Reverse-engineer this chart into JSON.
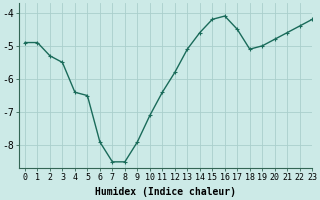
{
  "x": [
    0,
    1,
    2,
    3,
    4,
    5,
    6,
    7,
    8,
    9,
    10,
    11,
    12,
    13,
    14,
    15,
    16,
    17,
    18,
    19,
    20,
    21,
    22,
    23
  ],
  "y": [
    -4.9,
    -4.9,
    -5.3,
    -5.5,
    -6.4,
    -6.5,
    -7.9,
    -8.5,
    -8.5,
    -7.9,
    -7.1,
    -6.4,
    -5.8,
    -5.1,
    -4.6,
    -4.2,
    -4.1,
    -4.5,
    -5.1,
    -5.0,
    -4.8,
    -4.6,
    -4.4,
    -4.2
  ],
  "line_color": "#1a6b5a",
  "bg_color": "#cceae7",
  "grid_color": "#aacfcc",
  "xlabel": "Humidex (Indice chaleur)",
  "xlim": [
    -0.5,
    23
  ],
  "ylim": [
    -8.7,
    -3.7
  ],
  "yticks": [
    -8,
    -7,
    -6,
    -5,
    -4
  ],
  "xticks": [
    0,
    1,
    2,
    3,
    4,
    5,
    6,
    7,
    8,
    9,
    10,
    11,
    12,
    13,
    14,
    15,
    16,
    17,
    18,
    19,
    20,
    21,
    22,
    23
  ],
  "marker": "+",
  "markersize": 3.5,
  "linewidth": 1.0,
  "xlabel_fontsize": 7,
  "tick_fontsize": 6,
  "ytick_fontsize": 7
}
